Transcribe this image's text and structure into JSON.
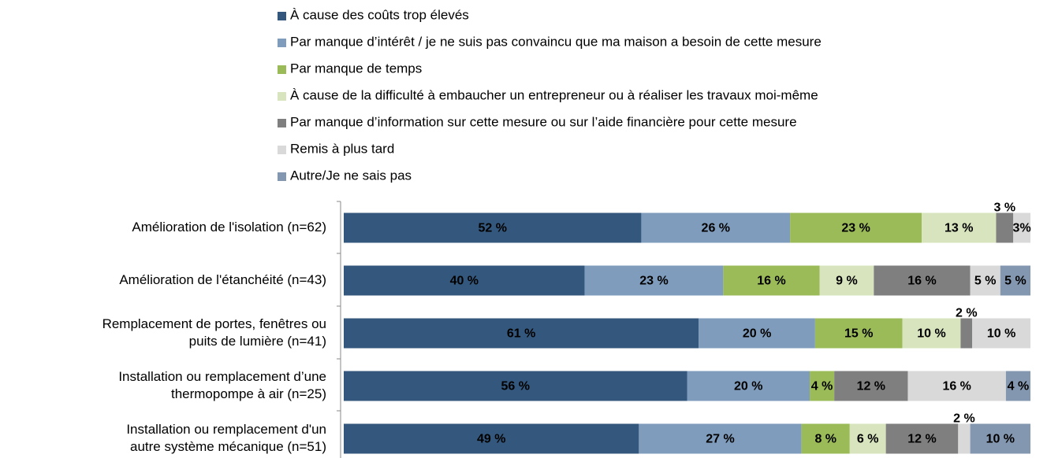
{
  "chart_data": {
    "type": "bar",
    "orientation": "horizontal",
    "stacked100": true,
    "legend": "top",
    "categories": [
      [
        "Amélioration de l'isolation (n=62)"
      ],
      [
        "Amélioration de l'étanchéité (n=43)"
      ],
      [
        "Remplacement de portes, fenêtres ou",
        "puits de lumière (n=41)"
      ],
      [
        "Installation ou remplacement d’une",
        "thermopompe à air (n=25)"
      ],
      [
        "Installation ou remplacement d'un",
        "autre système mécanique (n=51)"
      ]
    ],
    "series": [
      {
        "name": "À cause des coûts trop élevés",
        "color": "#34587d",
        "values": [
          52,
          40,
          61,
          56,
          49
        ],
        "value_labels": [
          "52 %",
          "40 %",
          "61 %",
          "56 %",
          "49 %"
        ]
      },
      {
        "name": "Par manque d’intérêt / je ne suis pas convaincu que ma maison a besoin de cette mesure",
        "color": "#7f9cbd",
        "values": [
          26,
          23,
          20,
          20,
          27
        ],
        "value_labels": [
          "26 %",
          "23 %",
          "20 %",
          "20 %",
          "27 %"
        ]
      },
      {
        "name": "Par manque de temps",
        "color": "#9bbb59",
        "values": [
          23,
          16,
          15,
          4,
          8
        ],
        "value_labels": [
          "23 %",
          "16 %",
          "15 %",
          "4 %",
          "8 %"
        ]
      },
      {
        "name": "À cause de la difficulté à embaucher un entrepreneur ou à réaliser les travaux moi-même",
        "color": "#d7e4bd",
        "values": [
          13,
          9,
          10,
          null,
          6
        ],
        "value_labels": [
          "13 %",
          "9 %",
          "10 %",
          null,
          "6 %"
        ]
      },
      {
        "name": "Par manque d’information sur cette mesure ou sur l’aide financière pour cette mesure",
        "color": "#7f7f7f",
        "values": [
          3,
          16,
          2,
          12,
          12
        ],
        "value_labels": [
          "3 %",
          "16 %",
          "2 %",
          "12 %",
          "12 %"
        ]
      },
      {
        "name": "Remis à plus tard",
        "color": "#d9d9d9",
        "values": [
          3,
          5,
          10,
          16,
          2
        ],
        "value_labels": [
          "3%",
          "5 %",
          "10 %",
          "16 %",
          "2 %"
        ]
      },
      {
        "name": "Autre/Je ne sais pas",
        "color": "#8497b0",
        "values": [
          null,
          5,
          null,
          4,
          10
        ],
        "value_labels": [
          null,
          "5 %",
          null,
          "4 %",
          "10 %"
        ]
      }
    ]
  }
}
